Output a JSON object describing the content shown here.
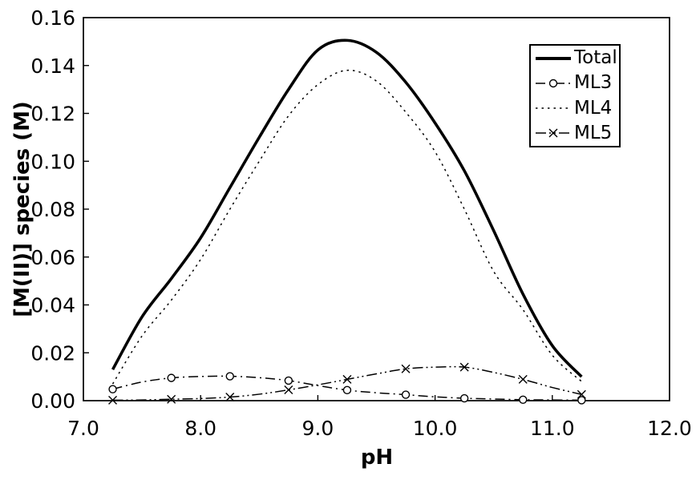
{
  "figure": {
    "background": "#ffffff",
    "line_color": "#000000"
  },
  "chart_data": {
    "type": "line",
    "title": "",
    "xlabel": "pH",
    "ylabel": "[M(II)] species (M)",
    "xlim": [
      7.0,
      12.0
    ],
    "ylim": [
      0.0,
      0.16
    ],
    "grid": false,
    "legend_position": "top-right",
    "x_ticks": [
      {
        "v": 7.0,
        "label": "7.0"
      },
      {
        "v": 8.0,
        "label": "8.0"
      },
      {
        "v": 9.0,
        "label": "9.0"
      },
      {
        "v": 10.0,
        "label": "10.0"
      },
      {
        "v": 11.0,
        "label": "11.0"
      },
      {
        "v": 12.0,
        "label": "12.0"
      }
    ],
    "y_ticks": [
      {
        "v": 0.0,
        "label": "0.00"
      },
      {
        "v": 0.02,
        "label": "0.02"
      },
      {
        "v": 0.04,
        "label": "0.04"
      },
      {
        "v": 0.06,
        "label": "0.06"
      },
      {
        "v": 0.08,
        "label": "0.08"
      },
      {
        "v": 0.1,
        "label": "0.10"
      },
      {
        "v": 0.12,
        "label": "0.12"
      },
      {
        "v": 0.14,
        "label": "0.14"
      },
      {
        "v": 0.16,
        "label": "0.16"
      }
    ],
    "x": [
      7.25,
      7.5,
      7.75,
      8.0,
      8.25,
      8.5,
      8.75,
      9.0,
      9.25,
      9.5,
      9.75,
      10.0,
      10.25,
      10.5,
      10.75,
      11.0,
      11.25
    ],
    "series": [
      {
        "name": "Total",
        "line": "solid",
        "thick": true,
        "marker": "none",
        "values": [
          0.013,
          0.035,
          0.051,
          0.068,
          0.089,
          0.11,
          0.13,
          0.1465,
          0.1505,
          0.1455,
          0.133,
          0.116,
          0.096,
          0.071,
          0.0445,
          0.023,
          0.01
        ]
      },
      {
        "name": "ML3",
        "line": "dash-dot",
        "thick": false,
        "marker": "circle",
        "marker_every": 2,
        "values": [
          0.0048,
          0.0078,
          0.0095,
          0.0101,
          0.0102,
          0.0096,
          0.0084,
          0.0063,
          0.0044,
          0.0033,
          0.0025,
          0.0016,
          0.001,
          0.0007,
          0.0004,
          0.0003,
          0.0002
        ]
      },
      {
        "name": "ML4",
        "line": "dotted",
        "thick": false,
        "marker": "none",
        "values": [
          0.007,
          0.027,
          0.042,
          0.059,
          0.08,
          0.1,
          0.119,
          0.132,
          0.138,
          0.1335,
          0.1205,
          0.104,
          0.08,
          0.054,
          0.038,
          0.019,
          0.008
        ]
      },
      {
        "name": "ML5",
        "line": "dash-dot-dot",
        "thick": false,
        "marker": "x",
        "marker_every": 2,
        "values": [
          0.0002,
          0.0003,
          0.0006,
          0.0009,
          0.0015,
          0.0027,
          0.0045,
          0.0066,
          0.0089,
          0.0112,
          0.0133,
          0.014,
          0.014,
          0.0118,
          0.0089,
          0.0055,
          0.0026
        ]
      }
    ]
  }
}
